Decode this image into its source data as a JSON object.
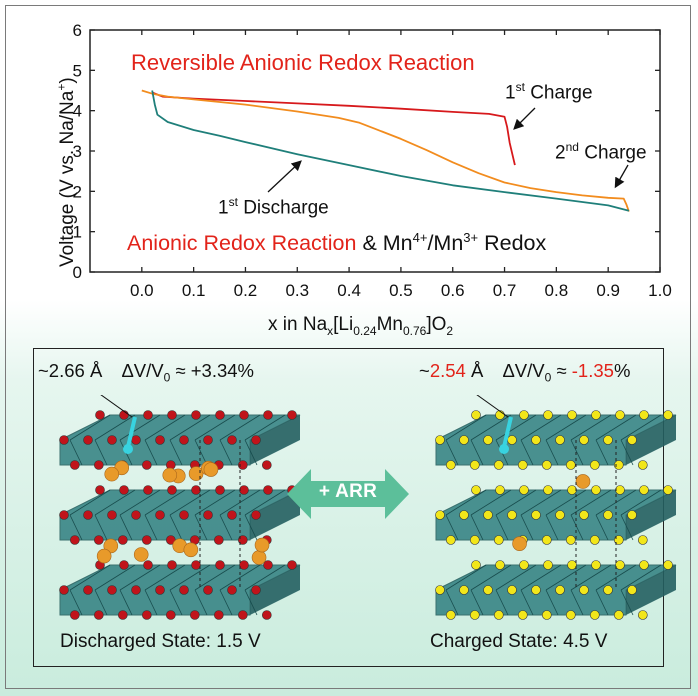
{
  "chart_data": {
    "type": "line",
    "ylabel_parts": [
      "Voltage (V vs. Na/Na",
      "+",
      ")"
    ],
    "xlabel_parts": {
      "pre": "x in Na",
      "s1": "x",
      "mid": "[Li",
      "s2": "0.24",
      "mid2": "Mn",
      "s3": "0.76",
      "post": "]O",
      "s4": "2"
    },
    "xlim": [
      -0.1,
      1.0
    ],
    "ylim": [
      0,
      6
    ],
    "xticks": [
      "0.0",
      "0.1",
      "0.2",
      "0.3",
      "0.4",
      "0.5",
      "0.6",
      "0.7",
      "0.8",
      "0.9",
      "1.0"
    ],
    "xtick_values": [
      0,
      0.1,
      0.2,
      0.3,
      0.4,
      0.5,
      0.6,
      0.7,
      0.8,
      0.9,
      1.0
    ],
    "yticks": [
      "0",
      "1",
      "2",
      "3",
      "4",
      "5",
      "6"
    ],
    "ytick_values": [
      0,
      1,
      2,
      3,
      4,
      5,
      6
    ],
    "series": [
      {
        "name": "1st Charge",
        "color": "#d7191c",
        "x": [
          0.02,
          0.04,
          0.1,
          0.2,
          0.3,
          0.4,
          0.5,
          0.6,
          0.67,
          0.7,
          0.705,
          0.71,
          0.72
        ],
        "y": [
          4.45,
          4.35,
          4.3,
          4.24,
          4.18,
          4.12,
          4.05,
          3.97,
          3.92,
          3.85,
          3.6,
          3.2,
          2.65
        ]
      },
      {
        "name": "2nd Charge",
        "color": "#f28c1e",
        "x": [
          0.0,
          0.02,
          0.05,
          0.1,
          0.2,
          0.3,
          0.38,
          0.42,
          0.45,
          0.5,
          0.55,
          0.6,
          0.65,
          0.7,
          0.75,
          0.8,
          0.85,
          0.9,
          0.93,
          0.935,
          0.94
        ],
        "y": [
          4.5,
          4.42,
          4.35,
          4.28,
          4.15,
          3.98,
          3.82,
          3.7,
          3.55,
          3.3,
          3.02,
          2.72,
          2.45,
          2.22,
          2.08,
          1.98,
          1.9,
          1.84,
          1.82,
          1.68,
          1.5
        ]
      },
      {
        "name": "1st Discharge",
        "color": "#1f7f7a",
        "x": [
          0.02,
          0.025,
          0.03,
          0.05,
          0.1,
          0.15,
          0.2,
          0.3,
          0.4,
          0.5,
          0.6,
          0.7,
          0.8,
          0.9,
          0.94
        ],
        "y": [
          4.5,
          4.15,
          3.9,
          3.72,
          3.52,
          3.38,
          3.22,
          2.92,
          2.65,
          2.38,
          2.15,
          1.98,
          1.82,
          1.65,
          1.52
        ]
      }
    ],
    "annotations": {
      "title_red": "Reversible Anionic Redox Reaction",
      "charge1": {
        "pre": "1",
        "sup": "st",
        "post": " Charge"
      },
      "charge2": {
        "pre": "2",
        "sup": "nd",
        "post": " Charge"
      },
      "discharge1": {
        "pre": "1",
        "sup": "st",
        "post": " Discharge"
      },
      "bottom_red": "Anionic Redox Reaction",
      "bottom_rest_a": " & Mn",
      "bottom_sup1": "4+",
      "bottom_rest_b": "/Mn",
      "bottom_sup2": "3+",
      "bottom_rest_c": " Redox"
    }
  },
  "panel": {
    "left_distance": "~2.66 Å",
    "left_dv": "ΔV/V",
    "left_dv_sub": "0",
    "left_dv_val": " ≈ +3.34%",
    "right_distance_prefix": "~",
    "right_distance_red": "2.54",
    "right_distance_unit": " Å",
    "right_dv": "ΔV/V",
    "right_dv_sub": "0",
    "right_dv_mid": " ≈ ",
    "right_dv_red": "-1.35",
    "right_dv_pct": "%",
    "arrow_label": "+ ARR",
    "left_caption": "Discharged State: 1.5 V",
    "right_caption": "Charged State: 4.5 V"
  },
  "colors": {
    "teal_octahedra": "#2f7f80",
    "oxygen_left": "#c0141b",
    "oxygen_right": "#f2e61a",
    "sodium": "#e89a2a",
    "bond": "#38d3e0",
    "arrow": "#5cbf9a"
  }
}
